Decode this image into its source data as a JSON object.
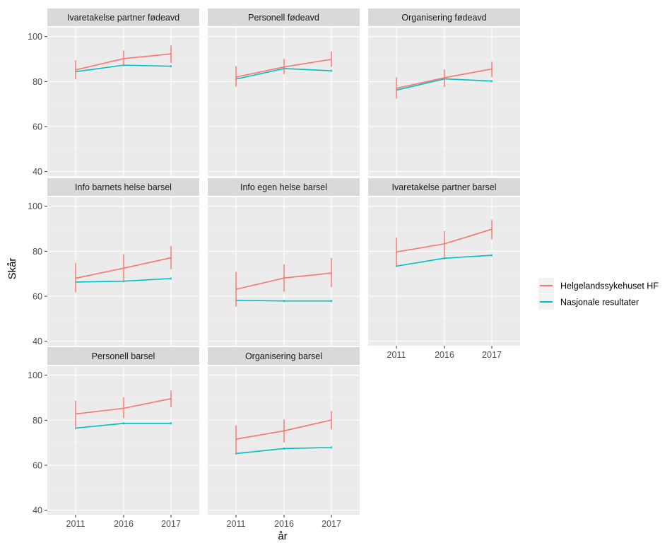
{
  "chart_data": {
    "type": "line",
    "facet_layout": "3 columns, 3 rows (faceted)",
    "xlabel": "år",
    "ylabel": "Skår",
    "x_categories": [
      "2011",
      "2016",
      "2017"
    ],
    "ylim": [
      38,
      104
    ],
    "y_ticks": [
      40,
      60,
      80,
      100
    ],
    "grid": true,
    "legend_position": "right",
    "legend": [
      {
        "name": "Helgelandssykehuset HF",
        "color": "#F8766D"
      },
      {
        "name": "Nasjonale resultater",
        "color": "#00BFC4"
      }
    ],
    "colors": {
      "panel_background": "#EBEBEB",
      "strip_background": "#D9D9D9",
      "grid_major": "#FFFFFF",
      "grid_minor": "#F3F3F3"
    },
    "panels": [
      {
        "title": "Ivaretakelse partner fødeavd",
        "series": [
          {
            "name": "Helgelandssykehuset HF",
            "values": [
              85.2,
              90.2,
              92.3
            ],
            "error_low": [
              81,
              86.8,
              88.3
            ],
            "error_high": [
              89.4,
              93.8,
              96.1
            ]
          },
          {
            "name": "Nasjonale resultater",
            "values": [
              84.4,
              87.3,
              86.8
            ],
            "error_low": [
              83.9,
              86.8,
              86.3
            ],
            "error_high": [
              84.9,
              87.8,
              87.3
            ]
          }
        ]
      },
      {
        "title": "Personell fødeavd",
        "series": [
          {
            "name": "Helgelandssykehuset HF",
            "values": [
              82.0,
              86.5,
              89.9
            ],
            "error_low": [
              77.7,
              83.3,
              86.5
            ],
            "error_high": [
              86.8,
              90.1,
              93.4
            ]
          },
          {
            "name": "Nasjonale resultater",
            "values": [
              81.1,
              85.8,
              84.8
            ],
            "error_low": [
              80.6,
              85.3,
              84.3
            ],
            "error_high": [
              81.6,
              86.3,
              85.3
            ]
          }
        ]
      },
      {
        "title": "Organisering fødeavd",
        "series": [
          {
            "name": "Helgelandssykehuset HF",
            "values": [
              77.0,
              81.7,
              85.6
            ],
            "error_low": [
              72.4,
              77.6,
              82.0
            ],
            "error_high": [
              81.9,
              85.4,
              88.8
            ]
          },
          {
            "name": "Nasjonale resultater",
            "values": [
              76.2,
              81.2,
              80.2
            ],
            "error_low": [
              75.7,
              80.7,
              79.7
            ],
            "error_high": [
              76.7,
              81.7,
              80.7
            ]
          }
        ]
      },
      {
        "title": "Info barnets helse barsel",
        "series": [
          {
            "name": "Helgelandssykehuset HF",
            "values": [
              68.0,
              72.5,
              77.1
            ],
            "error_low": [
              61.7,
              66.8,
              72.0
            ],
            "error_high": [
              74.9,
              78.7,
              82.4
            ]
          },
          {
            "name": "Nasjonale resultater",
            "values": [
              66.3,
              66.7,
              67.9
            ],
            "error_low": [
              65.8,
              66.2,
              67.4
            ],
            "error_high": [
              66.8,
              67.2,
              68.4
            ]
          }
        ]
      },
      {
        "title": "Info egen helse barsel",
        "series": [
          {
            "name": "Helgelandssykehuset HF",
            "values": [
              63.1,
              68.1,
              70.3
            ],
            "error_low": [
              55.4,
              62.0,
              64.0
            ],
            "error_high": [
              70.8,
              74.2,
              77.0
            ]
          },
          {
            "name": "Nasjonale resultater",
            "values": [
              58.2,
              57.9,
              57.9
            ],
            "error_low": [
              57.7,
              57.4,
              57.4
            ],
            "error_high": [
              58.7,
              58.4,
              58.4
            ]
          }
        ]
      },
      {
        "title": "Ivaretakelse partner barsel",
        "series": [
          {
            "name": "Helgelandssykehuset HF",
            "values": [
              79.7,
              83.3,
              89.8
            ],
            "error_low": [
              73.4,
              77.6,
              85.2
            ],
            "error_high": [
              86.0,
              88.9,
              93.9
            ]
          },
          {
            "name": "Nasjonale resultater",
            "values": [
              73.4,
              76.9,
              78.2
            ],
            "error_low": [
              72.9,
              76.4,
              77.7
            ],
            "error_high": [
              73.9,
              77.4,
              78.7
            ]
          }
        ]
      },
      {
        "title": "Personell barsel",
        "series": [
          {
            "name": "Helgelandssykehuset HF",
            "values": [
              82.8,
              85.3,
              89.6
            ],
            "error_low": [
              76.5,
              80.9,
              85.8
            ],
            "error_high": [
              88.6,
              90.2,
              93.2
            ]
          },
          {
            "name": "Nasjonale resultater",
            "values": [
              76.5,
              78.6,
              78.6
            ],
            "error_low": [
              76.0,
              78.1,
              78.1
            ],
            "error_high": [
              77.0,
              79.1,
              79.1
            ]
          }
        ]
      },
      {
        "title": "Organisering barsel",
        "series": [
          {
            "name": "Helgelandssykehuset HF",
            "values": [
              71.6,
              75.3,
              80.1
            ],
            "error_low": [
              65.0,
              70.1,
              75.9
            ],
            "error_high": [
              77.8,
              80.4,
              84.1
            ]
          },
          {
            "name": "Nasjonale resultater",
            "values": [
              65.2,
              67.4,
              67.9
            ],
            "error_low": [
              64.7,
              66.9,
              67.4
            ],
            "error_high": [
              65.7,
              67.9,
              68.4
            ]
          }
        ]
      }
    ]
  }
}
